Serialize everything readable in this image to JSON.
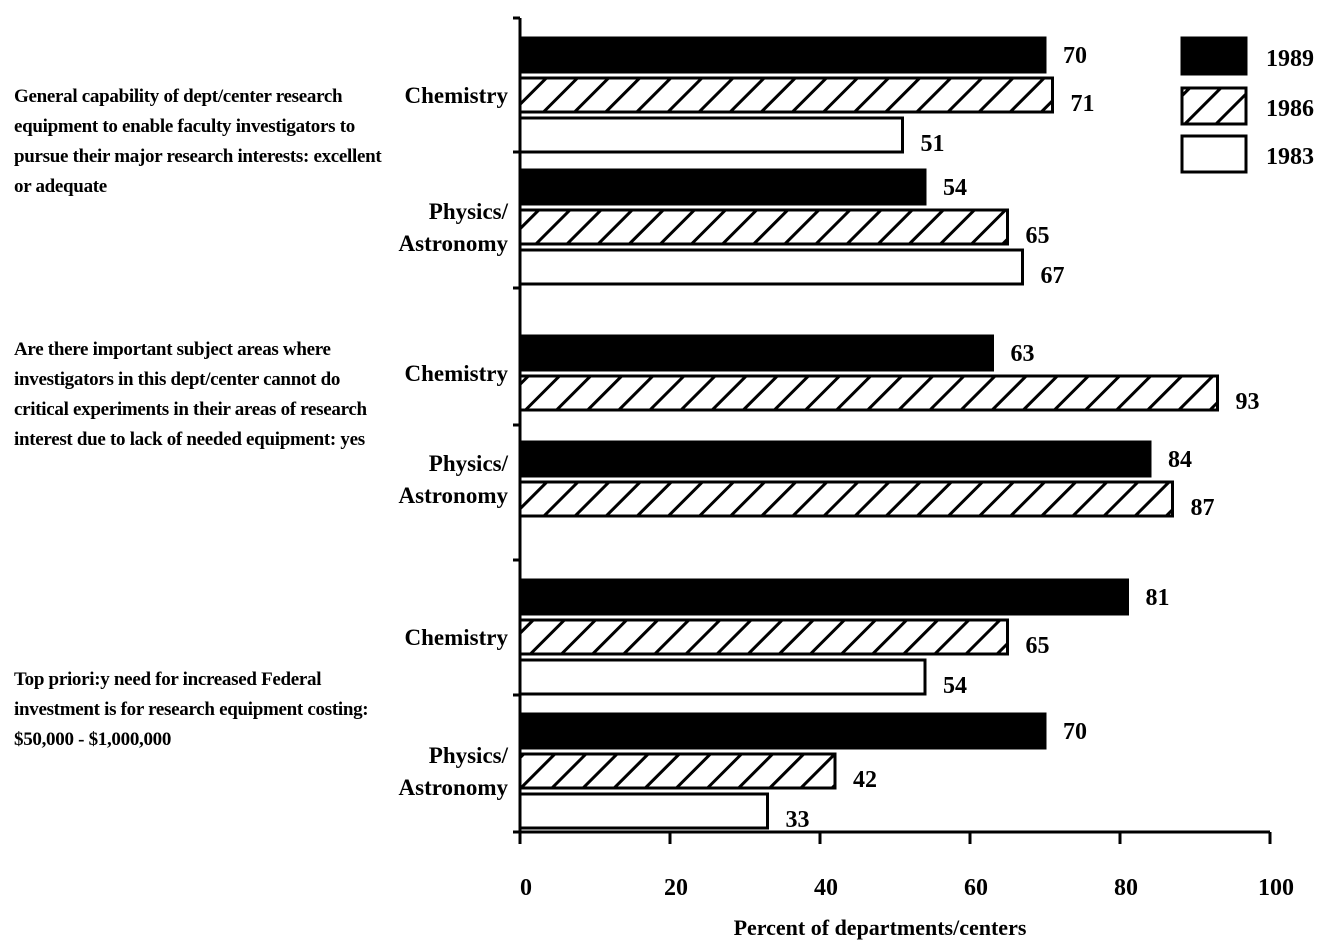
{
  "questions": [
    "General capability of dept/center research equipment to enable faculty investigators to pursue their major research interests:  excellent or adequate",
    "Are there important subject areas where investigators in this dept/center cannot do critical experiments in their areas of research interest due to lack of needed equipment:  yes",
    "Top priori:y need for increased Federal investment is for research equipment costing:  $50,000 - $1,000,000"
  ],
  "chart_data": {
    "type": "bar",
    "orientation": "horizontal",
    "xlabel": "Percent of departments/centers",
    "xlim": [
      0,
      100
    ],
    "xticks": [
      0,
      20,
      40,
      60,
      80,
      100
    ],
    "legend_position": "top-right",
    "legend": [
      {
        "name": "1989",
        "fill": "solid",
        "color": "#000000"
      },
      {
        "name": "1986",
        "fill": "hatch",
        "color": "#000000"
      },
      {
        "name": "1983",
        "fill": "white",
        "color": "#ffffff"
      }
    ],
    "groups": [
      {
        "question": 0,
        "field": "Chemistry",
        "values": {
          "1989": 70,
          "1986": 71,
          "1983": 51
        }
      },
      {
        "question": 0,
        "field": "Physics/ Astronomy",
        "values": {
          "1989": 54,
          "1986": 65,
          "1983": 67
        }
      },
      {
        "question": 1,
        "field": "Chemistry",
        "values": {
          "1989": 63,
          "1986": 93
        }
      },
      {
        "question": 1,
        "field": "Physics/ Astronomy",
        "values": {
          "1989": 84,
          "1986": 87
        }
      },
      {
        "question": 2,
        "field": "Chemistry",
        "values": {
          "1989": 81,
          "1986": 65,
          "1983": 54
        }
      },
      {
        "question": 2,
        "field": "Physics/ Astronomy",
        "values": {
          "1989": 70,
          "1986": 42,
          "1983": 33
        }
      }
    ]
  }
}
